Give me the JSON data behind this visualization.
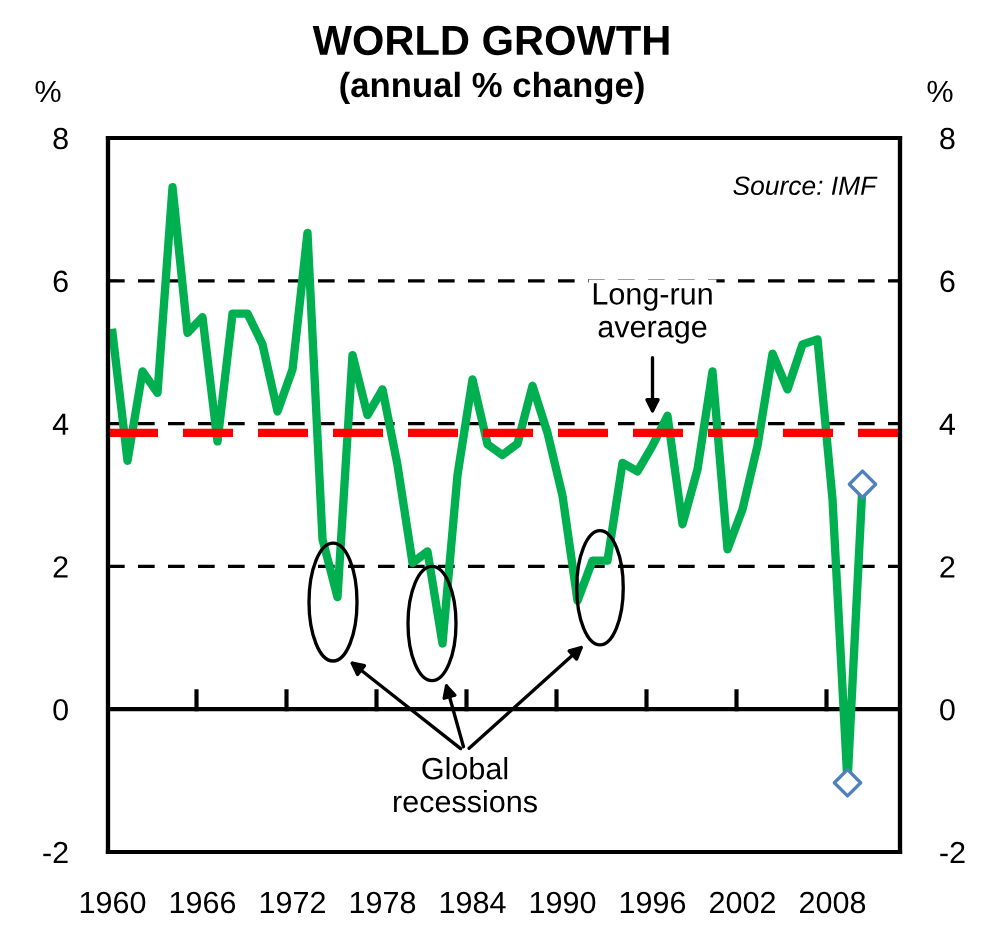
{
  "chart_data": {
    "type": "line",
    "title": "WORLD GROWTH",
    "subtitle": "(annual % change)",
    "ylabel": "%",
    "y2label": "%",
    "x": [
      1960,
      1961,
      1962,
      1963,
      1964,
      1965,
      1966,
      1967,
      1968,
      1969,
      1970,
      1971,
      1972,
      1973,
      1974,
      1975,
      1976,
      1977,
      1978,
      1979,
      1980,
      1981,
      1982,
      1983,
      1984,
      1985,
      1986,
      1987,
      1988,
      1989,
      1990,
      1991,
      1992,
      1993,
      1994,
      1995,
      1996,
      1997,
      1998,
      1999,
      2000,
      2001,
      2002,
      2003,
      2004,
      2005,
      2006,
      2007,
      2008,
      2009,
      2010
    ],
    "series": [
      {
        "color": "#00b050",
        "marker": "none",
        "values": [
          5.27,
          3.48,
          4.73,
          4.43,
          7.31,
          5.27,
          5.49,
          3.75,
          5.54,
          5.54,
          5.11,
          4.17,
          4.76,
          6.67,
          2.38,
          1.57,
          4.96,
          4.12,
          4.48,
          3.42,
          2.05,
          2.21,
          0.92,
          3.28,
          4.62,
          3.71,
          3.56,
          3.72,
          4.53,
          3.87,
          2.99,
          1.52,
          2.08,
          2.08,
          3.45,
          3.33,
          3.69,
          4.11,
          2.59,
          3.36,
          4.73,
          2.24,
          2.8,
          3.69,
          4.98,
          4.48,
          5.11,
          5.18,
          2.94,
          -1.03,
          3.15
        ]
      },
      {
        "type": "scatter",
        "color": "#4f81bd",
        "marker": "diamond",
        "values": [
          null,
          null,
          null,
          null,
          null,
          null,
          null,
          null,
          null,
          null,
          null,
          null,
          null,
          null,
          null,
          null,
          null,
          null,
          null,
          null,
          null,
          null,
          null,
          null,
          null,
          null,
          null,
          null,
          null,
          null,
          null,
          null,
          null,
          null,
          null,
          null,
          null,
          null,
          null,
          null,
          null,
          null,
          null,
          null,
          null,
          null,
          null,
          null,
          null,
          -1.03,
          3.15
        ]
      }
    ],
    "xlim": [
      1959.7,
      2012.5
    ],
    "xticks": [
      1960,
      1966,
      1972,
      1978,
      1984,
      1990,
      1996,
      2002,
      2008
    ],
    "ylim": [
      -2,
      8
    ],
    "yticks": [
      -2,
      0,
      2,
      4,
      6,
      8
    ],
    "y2lim": [
      -2,
      8
    ],
    "y2ticks": [
      -2,
      0,
      2,
      4,
      6,
      8
    ],
    "grid": "y",
    "legend": false,
    "ref_lines": [
      {
        "axis": "y",
        "value": 0,
        "color": "#000000",
        "line_style": "solid"
      },
      {
        "axis": "y",
        "value": 3.87,
        "color": "#ff0000",
        "line_style": "dashed"
      }
    ],
    "annotations": [
      "Source: IMF",
      "Long-run average",
      "Global recessions"
    ]
  }
}
